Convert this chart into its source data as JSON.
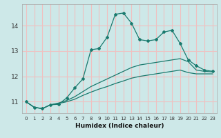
{
  "xlabel": "Humidex (Indice chaleur)",
  "xlim": [
    -0.5,
    23.5
  ],
  "ylim": [
    10.55,
    14.85
  ],
  "yticks": [
    11,
    12,
    13,
    14
  ],
  "xticks": [
    0,
    1,
    2,
    3,
    4,
    5,
    6,
    7,
    8,
    9,
    10,
    11,
    12,
    13,
    14,
    15,
    16,
    17,
    18,
    19,
    20,
    21,
    22,
    23
  ],
  "bg_color": "#cde8e8",
  "grid_color": "#f0c0c0",
  "line_color": "#1a7a6e",
  "line1_x": [
    0,
    1,
    2,
    3,
    4,
    5,
    6,
    7,
    8,
    9,
    10,
    11,
    12,
    13,
    14,
    15,
    16,
    17,
    18,
    19,
    20,
    21,
    22,
    23
  ],
  "line1_y": [
    11.0,
    10.78,
    10.73,
    10.88,
    10.9,
    11.15,
    11.55,
    11.9,
    13.05,
    13.1,
    13.55,
    14.45,
    14.5,
    14.1,
    13.45,
    13.4,
    13.45,
    13.75,
    13.82,
    13.3,
    12.65,
    12.42,
    12.25,
    12.2
  ],
  "line2_x": [
    0,
    1,
    2,
    3,
    4,
    5,
    6,
    7,
    8,
    9,
    10,
    11,
    12,
    13,
    14,
    15,
    16,
    17,
    18,
    19,
    20,
    21,
    22,
    23
  ],
  "line2_y": [
    11.0,
    10.78,
    10.73,
    10.88,
    10.95,
    11.05,
    11.2,
    11.4,
    11.6,
    11.75,
    11.9,
    12.05,
    12.2,
    12.35,
    12.45,
    12.5,
    12.55,
    12.6,
    12.65,
    12.7,
    12.58,
    12.25,
    12.2,
    12.18
  ],
  "line3_x": [
    0,
    1,
    2,
    3,
    4,
    5,
    6,
    7,
    8,
    9,
    10,
    11,
    12,
    13,
    14,
    15,
    16,
    17,
    18,
    19,
    20,
    21,
    22,
    23
  ],
  "line3_y": [
    11.0,
    10.78,
    10.73,
    10.88,
    10.93,
    11.0,
    11.1,
    11.25,
    11.38,
    11.5,
    11.6,
    11.72,
    11.82,
    11.93,
    12.0,
    12.05,
    12.1,
    12.15,
    12.2,
    12.25,
    12.15,
    12.1,
    12.1,
    12.1
  ]
}
